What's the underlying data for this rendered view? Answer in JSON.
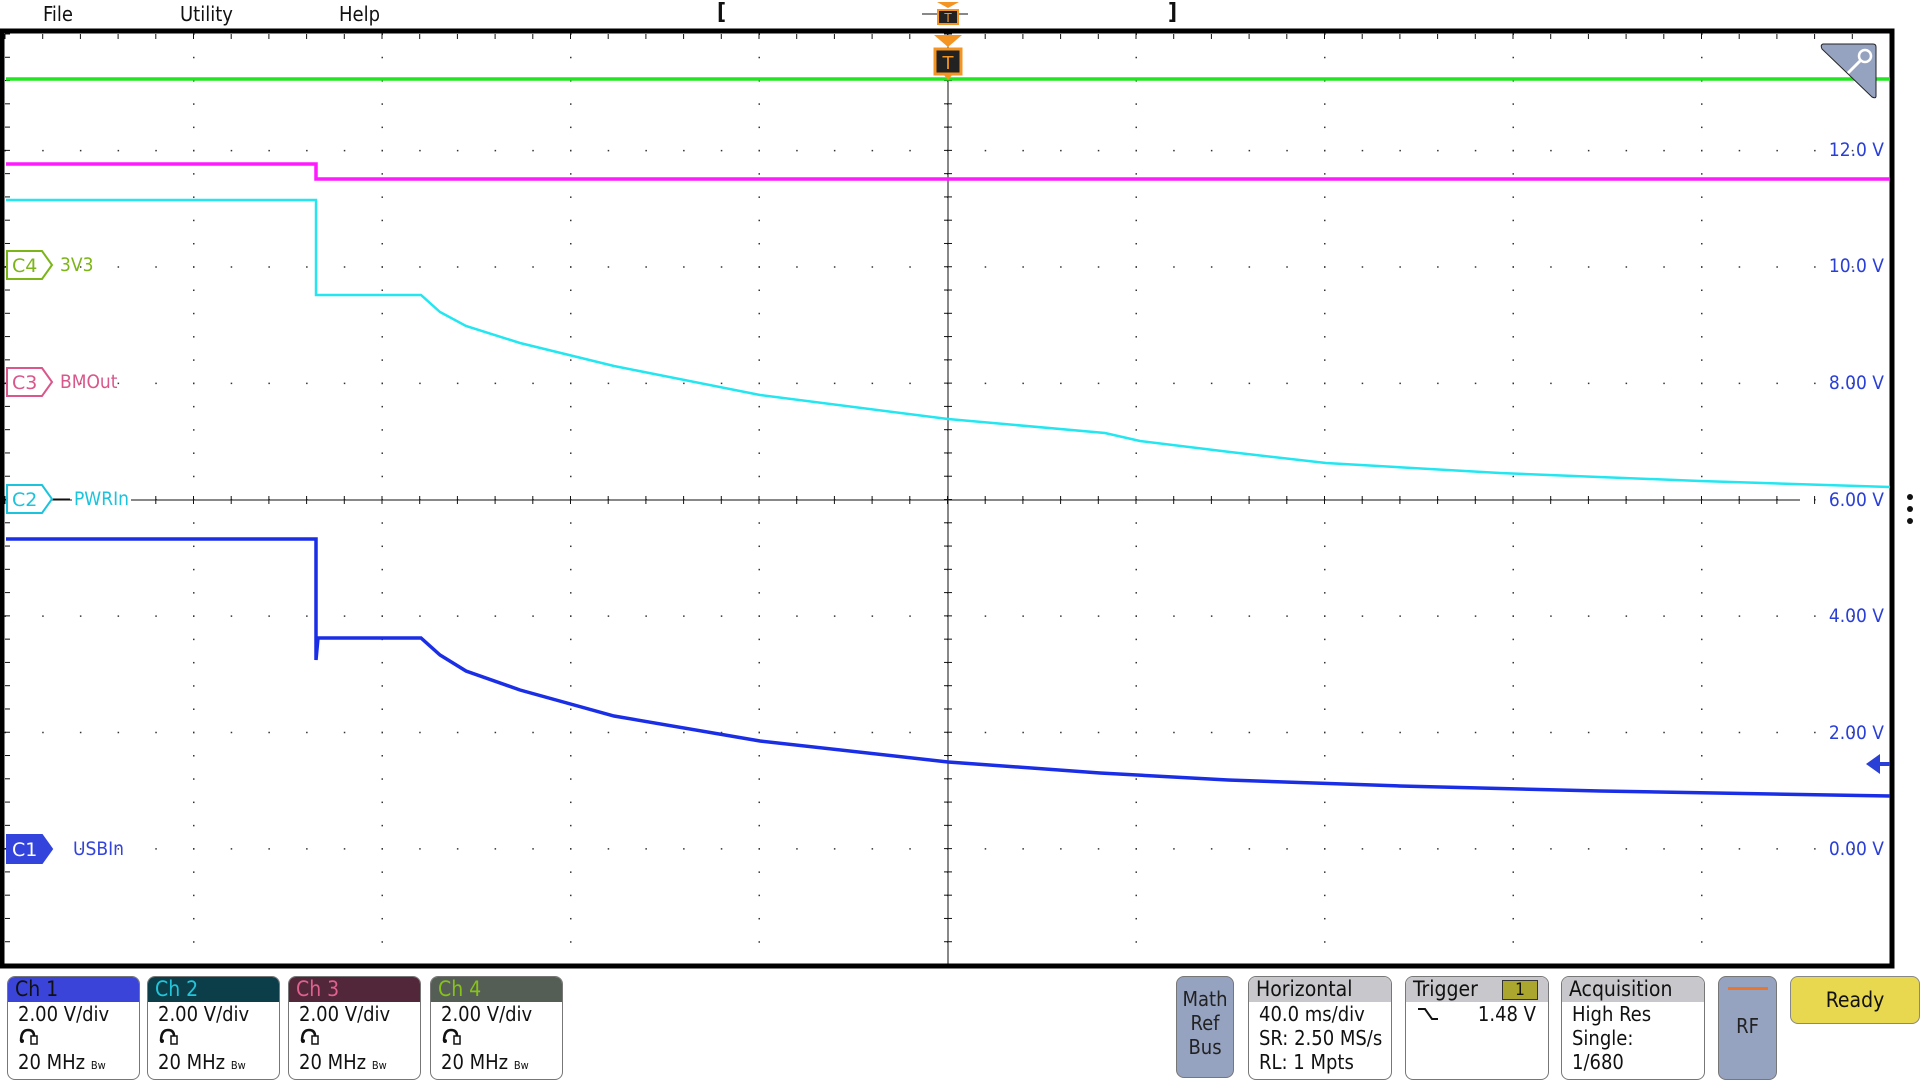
{
  "menu": {
    "items": [
      "File",
      "Utility",
      "Help"
    ]
  },
  "timebar": {
    "left_bracket": "[",
    "right_bracket": "]",
    "trigger_marker": "T"
  },
  "plot": {
    "trigger_marker": "T",
    "zoom_icon": "magnifier-icon",
    "volt_labels": [
      "12.0 V",
      "10.0 V",
      "8.00 V",
      "6.00 V",
      "4.00 V",
      "2.00 V",
      "0.00 V"
    ],
    "channels": [
      {
        "id": "C4",
        "name": "3V3",
        "color": "#7cb518",
        "trace": "#22e622"
      },
      {
        "id": "C3",
        "name": "BMOut",
        "color": "#d9578a",
        "trace": "#ff1aff"
      },
      {
        "id": "C2",
        "name": "PWRIn",
        "color": "#1cc3dc",
        "trace": "#22e6f0"
      },
      {
        "id": "C1",
        "name": "USBIn",
        "color": "#3344dd",
        "trace": "#1a2ee6"
      }
    ]
  },
  "bottom": {
    "channels": [
      {
        "label": "Ch 1",
        "scale": "2.00 V/div",
        "bw": "20 MHz",
        "bw_tag": "Bw",
        "head_bg": "#3a44d8",
        "head_fg": "#111111"
      },
      {
        "label": "Ch 2",
        "scale": "2.00 V/div",
        "bw": "20 MHz",
        "bw_tag": "Bw",
        "head_bg": "#0c3e4a",
        "head_fg": "#22c6dc"
      },
      {
        "label": "Ch 3",
        "scale": "2.00 V/div",
        "bw": "20 MHz",
        "bw_tag": "Bw",
        "head_bg": "#52273a",
        "head_fg": "#e0608e"
      },
      {
        "label": "Ch 4",
        "scale": "2.00 V/div",
        "bw": "20 MHz",
        "bw_tag": "Bw",
        "head_bg": "#555e55",
        "head_fg": "#86c21a"
      }
    ],
    "math_ref_bus": [
      "Math",
      "Ref",
      "Bus"
    ],
    "horizontal": {
      "title": "Horizontal",
      "lines": [
        "40.0 ms/div",
        "SR: 2.50 MS/s",
        "RL: 1 Mpts"
      ]
    },
    "trigger": {
      "title": "Trigger",
      "source": "1",
      "slope": "falling-edge-icon",
      "level": "1.48 V"
    },
    "acquisition": {
      "title": "Acquisition",
      "lines": [
        "High Res",
        "Single:",
        "1/680"
      ]
    },
    "rf": "RF",
    "ready": "Ready"
  }
}
